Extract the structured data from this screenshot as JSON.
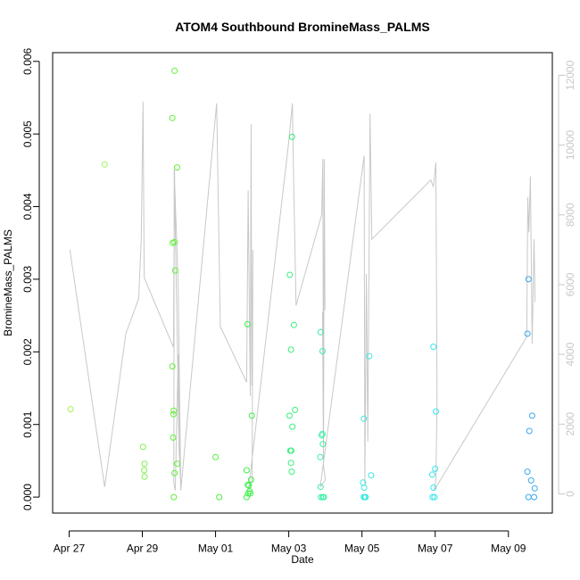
{
  "chart_data": {
    "type": "scatter",
    "title": "ATOM4 Southbound BromineMass_PALMS",
    "xlabel": "Date",
    "ylabel": "BromineMass_PALMS",
    "x_ticks": [
      "Apr 27",
      "Apr 29",
      "May 01",
      "May 03",
      "May 05",
      "May 07",
      "May 09"
    ],
    "x_tick_days": [
      0,
      2,
      4,
      6,
      8,
      10,
      12
    ],
    "xlim": [
      -0.45,
      13.2
    ],
    "ylim": [
      -0.00022,
      0.00612
    ],
    "y_ticks": [
      "0.000",
      "0.001",
      "0.002",
      "0.003",
      "0.004",
      "0.005",
      "0.006"
    ],
    "y_tick_values": [
      0,
      0.001,
      0.002,
      0.003,
      0.004,
      0.005,
      0.006
    ],
    "y2lim": [
      -550,
      12650
    ],
    "y2_ticks": [
      "0",
      "2000",
      "4000",
      "6000",
      "8000",
      "10000",
      "12000"
    ],
    "y2_tick_values": [
      0,
      2000,
      4000,
      6000,
      8000,
      10000,
      12000
    ],
    "grid": false,
    "legend": "none",
    "colors": {
      "line": "#c8c8c8",
      "axis": "#000000",
      "right_axis": "#c8c8c8"
    },
    "points": [
      {
        "x": 0.04,
        "y": 0.00121,
        "color": "#a6f25a"
      },
      {
        "x": 0.97,
        "y": 0.00458,
        "color": "#9cf25a"
      },
      {
        "x": 2.02,
        "y": 0.00069,
        "color": "#7ef04e"
      },
      {
        "x": 2.06,
        "y": 0.00046,
        "color": "#7ef04e"
      },
      {
        "x": 2.05,
        "y": 0.00037,
        "color": "#7ef04e"
      },
      {
        "x": 2.06,
        "y": 0.00028,
        "color": "#7ef04e"
      },
      {
        "x": 2.82,
        "y": 0.00522,
        "color": "#5ef034"
      },
      {
        "x": 2.88,
        "y": 0.00587,
        "color": "#5ef034"
      },
      {
        "x": 2.83,
        "y": 0.0035,
        "color": "#5ef034"
      },
      {
        "x": 2.88,
        "y": 0.00351,
        "color": "#5ef034"
      },
      {
        "x": 2.9,
        "y": 0.00312,
        "color": "#5ef034"
      },
      {
        "x": 2.95,
        "y": 0.00454,
        "color": "#5ef034"
      },
      {
        "x": 2.82,
        "y": 0.0018,
        "color": "#5ef034"
      },
      {
        "x": 2.86,
        "y": 0.00119,
        "color": "#5ef034"
      },
      {
        "x": 2.85,
        "y": 0.00114,
        "color": "#5ef034"
      },
      {
        "x": 2.84,
        "y": 0.00082,
        "color": "#5ef034"
      },
      {
        "x": 2.95,
        "y": 0.00046,
        "color": "#5ef034"
      },
      {
        "x": 2.88,
        "y": 0.00033,
        "color": "#5ef034"
      },
      {
        "x": 2.86,
        "y": 0.0,
        "color": "#5ef034"
      },
      {
        "x": 4.0,
        "y": 0.00055,
        "color": "#4ef040"
      },
      {
        "x": 4.1,
        "y": 0.0,
        "color": "#4ef040"
      },
      {
        "x": 4.87,
        "y": 0.00238,
        "color": "#3cf048"
      },
      {
        "x": 4.99,
        "y": 0.00112,
        "color": "#3cf048"
      },
      {
        "x": 4.85,
        "y": 0.00037,
        "color": "#3cf048"
      },
      {
        "x": 4.97,
        "y": 0.00024,
        "color": "#3cf048"
      },
      {
        "x": 4.88,
        "y": 0.00017,
        "color": "#3cf048"
      },
      {
        "x": 4.91,
        "y": 0.00016,
        "color": "#3cf048"
      },
      {
        "x": 4.93,
        "y": 8e-05,
        "color": "#3cf048"
      },
      {
        "x": 4.89,
        "y": 5e-05,
        "color": "#3cf048"
      },
      {
        "x": 4.95,
        "y": 5e-05,
        "color": "#3cf048"
      },
      {
        "x": 4.85,
        "y": 0.0,
        "color": "#3cf048"
      },
      {
        "x": 6.09,
        "y": 0.00496,
        "color": "#38f07c"
      },
      {
        "x": 6.03,
        "y": 0.00306,
        "color": "#38f07c"
      },
      {
        "x": 6.14,
        "y": 0.00237,
        "color": "#38f07c"
      },
      {
        "x": 6.06,
        "y": 0.00203,
        "color": "#38f07c"
      },
      {
        "x": 6.17,
        "y": 0.0012,
        "color": "#38f07c"
      },
      {
        "x": 6.02,
        "y": 0.00112,
        "color": "#38f07c"
      },
      {
        "x": 6.1,
        "y": 0.00097,
        "color": "#38f07c"
      },
      {
        "x": 6.04,
        "y": 0.00064,
        "color": "#38f07c"
      },
      {
        "x": 6.07,
        "y": 0.00064,
        "color": "#38f07c"
      },
      {
        "x": 6.06,
        "y": 0.00047,
        "color": "#38f07c"
      },
      {
        "x": 6.08,
        "y": 0.00035,
        "color": "#38f07c"
      },
      {
        "x": 6.87,
        "y": 0.00227,
        "color": "#38f0a4"
      },
      {
        "x": 6.92,
        "y": 0.00201,
        "color": "#38f0a4"
      },
      {
        "x": 6.9,
        "y": 0.00085,
        "color": "#38f0a4"
      },
      {
        "x": 6.92,
        "y": 0.00087,
        "color": "#38f0a4"
      },
      {
        "x": 6.93,
        "y": 0.00073,
        "color": "#38f0a4"
      },
      {
        "x": 6.86,
        "y": 0.00055,
        "color": "#38f0a4"
      },
      {
        "x": 6.87,
        "y": 0.00014,
        "color": "#38f0a4"
      },
      {
        "x": 6.88,
        "y": 0.0,
        "color": "#38f0a4"
      },
      {
        "x": 6.93,
        "y": 0.0,
        "color": "#38f0a4"
      },
      {
        "x": 6.96,
        "y": 0.0,
        "color": "#38f0a4"
      },
      {
        "x": 8.05,
        "y": 0.00108,
        "color": "#38e8e0"
      },
      {
        "x": 8.2,
        "y": 0.00194,
        "color": "#38e8e0"
      },
      {
        "x": 8.25,
        "y": 0.0003,
        "color": "#38e8e0"
      },
      {
        "x": 8.03,
        "y": 0.0002,
        "color": "#38e8e0"
      },
      {
        "x": 8.06,
        "y": 0.00013,
        "color": "#38e8e0"
      },
      {
        "x": 8.05,
        "y": 0.0,
        "color": "#38e8e0"
      },
      {
        "x": 8.08,
        "y": 0.0,
        "color": "#38e8e0"
      },
      {
        "x": 8.1,
        "y": 0.0,
        "color": "#38e8e0"
      },
      {
        "x": 9.95,
        "y": 0.00207,
        "color": "#38e4f0"
      },
      {
        "x": 10.02,
        "y": 0.00118,
        "color": "#38e4f0"
      },
      {
        "x": 10.0,
        "y": 0.00039,
        "color": "#38e4f0"
      },
      {
        "x": 9.92,
        "y": 0.00031,
        "color": "#38e4f0"
      },
      {
        "x": 9.95,
        "y": 0.00013,
        "color": "#38e4f0"
      },
      {
        "x": 9.93,
        "y": 0.0,
        "color": "#38e4f0"
      },
      {
        "x": 9.98,
        "y": 0.0,
        "color": "#38e4f0"
      },
      {
        "x": 12.55,
        "y": 0.003,
        "color": "#3aa8f0"
      },
      {
        "x": 12.52,
        "y": 0.00225,
        "color": "#3aa8f0"
      },
      {
        "x": 12.65,
        "y": 0.00112,
        "color": "#3aa8f0"
      },
      {
        "x": 12.57,
        "y": 0.00091,
        "color": "#3aa8f0"
      },
      {
        "x": 12.52,
        "y": 0.00035,
        "color": "#3aa8f0"
      },
      {
        "x": 12.62,
        "y": 0.00023,
        "color": "#3aa8f0"
      },
      {
        "x": 12.72,
        "y": 0.00012,
        "color": "#3aa8f0"
      },
      {
        "x": 12.55,
        "y": 0.0,
        "color": "#3aa8f0"
      },
      {
        "x": 12.7,
        "y": 0.0,
        "color": "#3aa8f0"
      }
    ],
    "line_series": [
      [
        0.02,
        7000
      ],
      [
        0.97,
        200
      ],
      [
        1.55,
        4600
      ],
      [
        1.9,
        5600
      ],
      [
        1.97,
        7300
      ],
      [
        2.02,
        11250
      ],
      [
        2.05,
        6200
      ],
      [
        2.85,
        4200
      ],
      [
        2.88,
        9300
      ],
      [
        2.9,
        7600
      ],
      [
        2.95,
        4700
      ],
      [
        3.0,
        1400
      ],
      [
        3.05,
        200
      ],
      [
        2.98,
        6000
      ],
      [
        2.87,
        9300
      ],
      [
        2.86,
        300
      ],
      [
        2.9,
        100
      ],
      [
        2.98,
        4000
      ],
      [
        3.05,
        100
      ],
      [
        4.03,
        11200
      ],
      [
        4.13,
        4800
      ],
      [
        4.85,
        3200
      ],
      [
        4.89,
        8700
      ],
      [
        4.95,
        2800
      ],
      [
        4.97,
        10600
      ],
      [
        4.99,
        3100
      ],
      [
        5.02,
        7000
      ],
      [
        5.0,
        400
      ],
      [
        4.91,
        200
      ],
      [
        6.0,
        10100
      ],
      [
        6.1,
        11200
      ],
      [
        6.13,
        9200
      ],
      [
        6.2,
        5400
      ],
      [
        6.9,
        8000
      ],
      [
        6.93,
        9600
      ],
      [
        6.95,
        1400
      ],
      [
        6.97,
        9600
      ],
      [
        6.99,
        5300
      ],
      [
        6.92,
        5200
      ],
      [
        6.95,
        800
      ],
      [
        7.0,
        400
      ],
      [
        6.86,
        200
      ],
      [
        8.06,
        9700
      ],
      [
        8.08,
        300
      ],
      [
        8.12,
        6300
      ],
      [
        8.16,
        1500
      ],
      [
        8.22,
        10900
      ],
      [
        8.27,
        7300
      ],
      [
        9.88,
        9000
      ],
      [
        9.95,
        8800
      ],
      [
        10.02,
        9500
      ],
      [
        10.05,
        2600
      ],
      [
        10.02,
        400
      ],
      [
        9.97,
        100
      ],
      [
        12.5,
        4500
      ],
      [
        12.53,
        8500
      ],
      [
        12.56,
        7500
      ],
      [
        12.6,
        9100
      ],
      [
        12.65,
        4300
      ],
      [
        12.7,
        7300
      ],
      [
        12.73,
        5500
      ]
    ]
  }
}
